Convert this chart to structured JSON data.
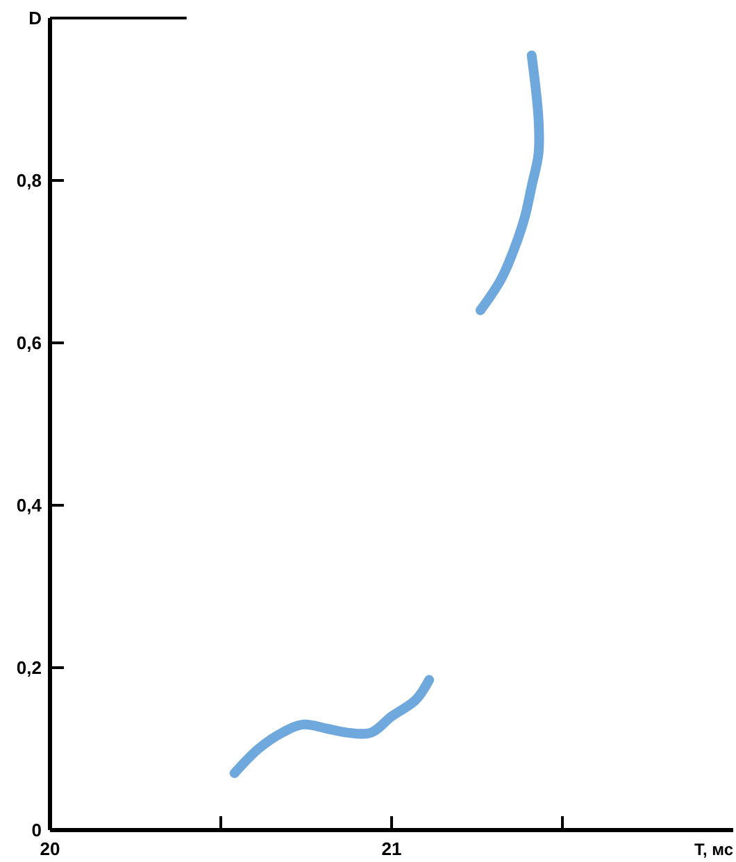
{
  "chart_data": {
    "type": "line",
    "xlabel": "T, мс",
    "ylabel": "D",
    "xlim": [
      20,
      22
    ],
    "ylim": [
      0,
      1
    ],
    "xticks": [
      20,
      {
        "value": 20.5,
        "label": null
      },
      21,
      {
        "value": 21.5,
        "label": null
      }
    ],
    "yticks": [
      0,
      {
        "value": 0.2,
        "label": "0,2"
      },
      {
        "value": 0.4,
        "label": "0,4"
      },
      {
        "value": 0.6,
        "label": "0,6"
      },
      {
        "value": 0.8,
        "label": "0,8"
      }
    ],
    "grid": false,
    "marker": "none",
    "line_style": "solid",
    "series": [
      {
        "color": "#6fa8dc",
        "x": [
          20.54,
          20.61,
          20.68,
          20.74,
          20.81,
          20.87,
          20.94,
          21.0,
          21.07,
          21.11
        ],
        "values": [
          0.07,
          0.1,
          0.12,
          0.13,
          0.125,
          0.12,
          0.12,
          0.14,
          0.16,
          0.185
        ]
      },
      {
        "color": "#6fa8dc",
        "x": [
          21.26,
          21.32,
          21.36,
          21.39,
          21.41,
          21.43,
          21.43,
          21.41
        ],
        "values": [
          0.64,
          0.678,
          0.717,
          0.755,
          0.793,
          0.833,
          0.876,
          0.954
        ]
      }
    ]
  }
}
